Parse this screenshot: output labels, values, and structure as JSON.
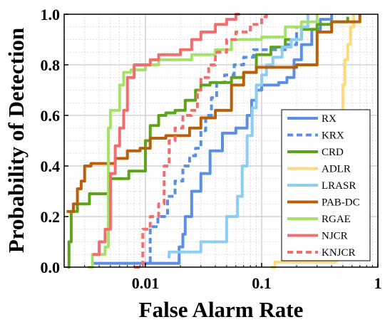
{
  "chart_data": {
    "type": "line",
    "title": "",
    "xlabel": "False Alarm Rate",
    "ylabel": "Probability of Detection",
    "xscale": "log",
    "xlim": [
      0.002,
      1
    ],
    "ylim": [
      0,
      1
    ],
    "x_ticks": [
      {
        "value": 0.01,
        "label": "0.01"
      },
      {
        "value": 0.1,
        "label": "0.1"
      },
      {
        "value": 1,
        "label": "1"
      }
    ],
    "y_ticks": [
      {
        "value": 0.0,
        "label": "0.0"
      },
      {
        "value": 0.2,
        "label": "0.2"
      },
      {
        "value": 0.4,
        "label": "0.4"
      },
      {
        "value": 0.6,
        "label": "0.6"
      },
      {
        "value": 0.8,
        "label": "0.8"
      },
      {
        "value": 1.0,
        "label": "1.0"
      }
    ],
    "grid": true,
    "legend_position": "bottom-right",
    "series": [
      {
        "name": "RX",
        "color": "#5b8fe4",
        "dash": "solid",
        "x": [
          0.0035,
          0.0195,
          0.0195,
          0.021,
          0.022,
          0.025,
          0.03,
          0.036,
          0.046,
          0.06,
          0.07,
          0.075,
          0.082,
          0.09,
          0.1,
          0.118,
          0.14,
          0.165,
          0.19,
          0.22,
          0.27,
          0.32,
          0.4
        ],
        "y": [
          0.015,
          0.015,
          0.08,
          0.13,
          0.2,
          0.3,
          0.37,
          0.46,
          0.53,
          0.55,
          0.55,
          0.6,
          0.66,
          0.7,
          0.72,
          0.72,
          0.73,
          0.75,
          0.82,
          0.88,
          0.94,
          0.98,
          1.0
        ]
      },
      {
        "name": "KRX",
        "color": "#5b8fe4",
        "dash": "dashed",
        "x": [
          0.0065,
          0.011,
          0.0128,
          0.0155,
          0.018,
          0.021,
          0.024,
          0.027,
          0.03,
          0.033,
          0.037,
          0.041,
          0.048,
          0.058,
          0.07,
          0.085,
          0.1,
          0.13,
          0.16,
          0.2
        ],
        "y": [
          0.015,
          0.16,
          0.2,
          0.28,
          0.34,
          0.4,
          0.44,
          0.47,
          0.54,
          0.6,
          0.67,
          0.73,
          0.76,
          0.8,
          0.83,
          0.86,
          0.86,
          0.86,
          0.88,
          0.95
        ]
      },
      {
        "name": "CRD",
        "color": "#5ea419",
        "dash": "solid",
        "x": [
          0.00215,
          0.0022,
          0.0023,
          0.0026,
          0.0033,
          0.005,
          0.0072,
          0.01,
          0.011,
          0.013,
          0.015,
          0.018,
          0.022,
          0.027,
          0.03,
          0.036,
          0.044,
          0.055,
          0.07,
          0.09,
          0.12,
          0.16,
          0.22,
          0.3,
          0.4,
          0.55
        ],
        "y": [
          0.0,
          0.1,
          0.22,
          0.25,
          0.29,
          0.35,
          0.38,
          0.5,
          0.56,
          0.6,
          0.61,
          0.62,
          0.66,
          0.7,
          0.72,
          0.73,
          0.73,
          0.75,
          0.77,
          0.84,
          0.87,
          0.9,
          0.94,
          0.96,
          0.97,
          0.99
        ]
      },
      {
        "name": "ADLR",
        "color": "#ffd97a",
        "dash": "solid",
        "x": [
          0.12,
          0.13,
          0.44,
          0.46,
          0.48,
          0.5,
          0.52,
          0.55,
          0.58,
          0.62
        ],
        "y": [
          0.0,
          0.02,
          0.22,
          0.42,
          0.55,
          0.72,
          0.82,
          0.88,
          0.95,
          1.0
        ]
      },
      {
        "name": "LRASR",
        "color": "#8ccdf4",
        "dash": "solid",
        "x": [
          0.0155,
          0.016,
          0.03,
          0.05,
          0.062,
          0.068,
          0.075,
          0.083,
          0.09,
          0.1,
          0.11,
          0.125,
          0.15,
          0.18,
          0.22,
          0.25
        ],
        "y": [
          0.04,
          0.06,
          0.1,
          0.2,
          0.28,
          0.4,
          0.52,
          0.63,
          0.72,
          0.76,
          0.8,
          0.83,
          0.87,
          0.9,
          0.95,
          1.0
        ]
      },
      {
        "name": "PAB-DC",
        "color": "#b95f0a",
        "dash": "solid",
        "x": [
          0.0021,
          0.0024,
          0.0026,
          0.0028,
          0.003,
          0.0034,
          0.0042,
          0.0055,
          0.007,
          0.009,
          0.011,
          0.015,
          0.02,
          0.024,
          0.03,
          0.04,
          0.055,
          0.07,
          0.09,
          0.12,
          0.2,
          0.3,
          0.4,
          0.7
        ],
        "y": [
          0.22,
          0.25,
          0.31,
          0.34,
          0.4,
          0.41,
          0.41,
          0.43,
          0.46,
          0.47,
          0.51,
          0.52,
          0.52,
          0.55,
          0.59,
          0.62,
          0.72,
          0.77,
          0.79,
          0.79,
          0.8,
          0.93,
          0.97,
          1.0
        ]
      },
      {
        "name": "RGAE",
        "color": "#a6e26b",
        "dash": "solid",
        "x": [
          0.0032,
          0.0035,
          0.0045,
          0.0048,
          0.005,
          0.0055,
          0.006,
          0.0065,
          0.0075,
          0.01,
          0.013,
          0.025,
          0.04,
          0.055,
          0.1,
          0.16,
          0.22,
          0.3
        ],
        "y": [
          0.0,
          0.05,
          0.08,
          0.55,
          0.62,
          0.62,
          0.72,
          0.77,
          0.78,
          0.8,
          0.82,
          0.84,
          0.86,
          0.9,
          0.91,
          0.95,
          0.97,
          1.0
        ]
      },
      {
        "name": "NJCR",
        "color": "#f36d6d",
        "dash": "solid",
        "x": [
          0.0035,
          0.004,
          0.0045,
          0.005,
          0.0055,
          0.006,
          0.0065,
          0.007,
          0.008,
          0.009,
          0.011,
          0.013,
          0.015,
          0.02,
          0.025,
          0.03,
          0.04,
          0.05,
          0.06,
          0.065
        ],
        "y": [
          0.05,
          0.1,
          0.15,
          0.37,
          0.48,
          0.55,
          0.62,
          0.75,
          0.8,
          0.8,
          0.82,
          0.84,
          0.84,
          0.86,
          0.9,
          0.93,
          0.96,
          0.98,
          1.0,
          1.0
        ]
      },
      {
        "name": "KNJCR",
        "color": "#f36d6d",
        "dash": "dashed",
        "x": [
          0.008,
          0.0095,
          0.011,
          0.013,
          0.0145,
          0.016,
          0.018,
          0.021,
          0.025,
          0.028,
          0.03,
          0.035,
          0.04,
          0.05,
          0.06,
          0.08,
          0.1,
          0.11
        ],
        "y": [
          0.0,
          0.15,
          0.2,
          0.25,
          0.4,
          0.5,
          0.55,
          0.6,
          0.62,
          0.7,
          0.75,
          0.8,
          0.85,
          0.9,
          0.93,
          0.96,
          0.99,
          1.0
        ]
      }
    ]
  }
}
